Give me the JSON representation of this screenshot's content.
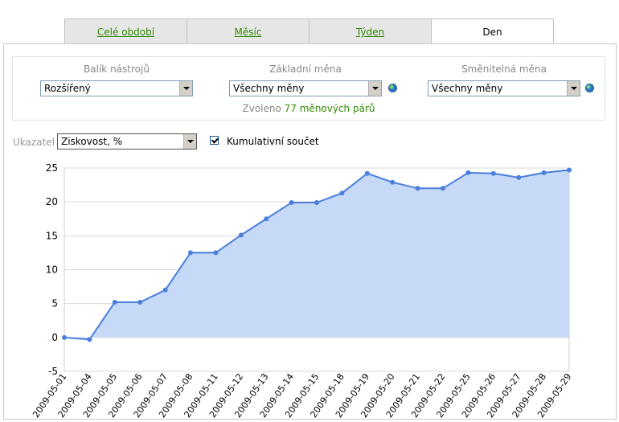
{
  "tabs": [
    {
      "label": "Celé období",
      "active": false
    },
    {
      "label": "Měsíc",
      "active": false
    },
    {
      "label": "Týden",
      "active": false
    },
    {
      "label": "Den",
      "active": true
    }
  ],
  "filters": {
    "toolkit": {
      "label": "Balík nástrojů",
      "value": "Rozšířený"
    },
    "base_currency": {
      "label": "Základní měna",
      "value": "Všechny měny"
    },
    "quote_currency": {
      "label": "Směnitelná měna",
      "value": "Všechny měny"
    },
    "pairs_prefix": "Zvoleno",
    "pairs_count": "77 měnových párů"
  },
  "indicator": {
    "label": "Ukazatel",
    "value": "Ziskovost, %"
  },
  "cumulative": {
    "label": "Kumulativní součet",
    "checked": true
  },
  "colors": {
    "line": "#4a7fdc",
    "fill": "#c6d9f7",
    "accent": "#2f8a00"
  },
  "chart_data": {
    "type": "area",
    "title": "",
    "xlabel": "",
    "ylabel": "",
    "ylim": [
      -5,
      25
    ],
    "yticks": [
      -5,
      0,
      5,
      10,
      15,
      20,
      25
    ],
    "grid": true,
    "categories": [
      "2009-05-01",
      "2009-05-04",
      "2009-05-05",
      "2009-05-06",
      "2009-05-07",
      "2009-05-08",
      "2009-05-11",
      "2009-05-12",
      "2009-05-13",
      "2009-05-14",
      "2009-05-15",
      "2009-05-18",
      "2009-05-19",
      "2009-05-20",
      "2009-05-21",
      "2009-05-22",
      "2009-05-25",
      "2009-05-26",
      "2009-05-27",
      "2009-05-28",
      "2009-05-29"
    ],
    "values": [
      0.0,
      -0.3,
      5.2,
      5.2,
      7.0,
      12.5,
      12.5,
      15.1,
      17.5,
      19.9,
      19.9,
      21.3,
      24.2,
      22.9,
      22.0,
      22.0,
      24.3,
      24.2,
      23.6,
      24.3,
      24.7
    ]
  }
}
